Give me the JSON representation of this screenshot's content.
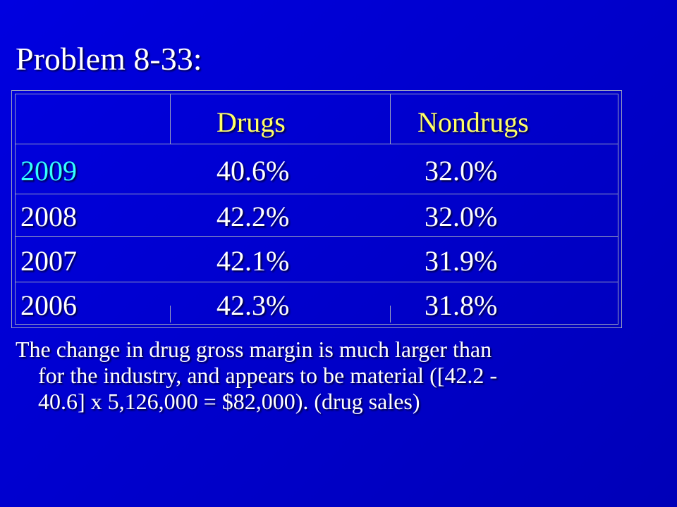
{
  "slide": {
    "title": "Problem 8-33:",
    "table": {
      "headers": [
        "",
        "Drugs",
        "Nondrugs"
      ],
      "rows": [
        {
          "year": "2009",
          "drugs": "40.6%",
          "nondrugs": "32.0%"
        },
        {
          "year": "2008",
          "drugs": "42.2%",
          "nondrugs": "32.0%"
        },
        {
          "year": "2007",
          "drugs": "42.1%",
          "nondrugs": "31.9%"
        },
        {
          "year": "2006",
          "drugs": "42.3%",
          "nondrugs": "31.8%"
        }
      ]
    },
    "body_lines": [
      "The change in drug gross margin is much larger than",
      "for the industry, and appears to be material ([42.2 -",
      "40.6] x 5,126,000 = $82,000). (drug sales)"
    ],
    "colors": {
      "background": "#0000cc",
      "header_text": "#ffff66",
      "highlight_year": "#33ffff",
      "text": "#ffffff",
      "grid": "#9aa0c0"
    }
  }
}
